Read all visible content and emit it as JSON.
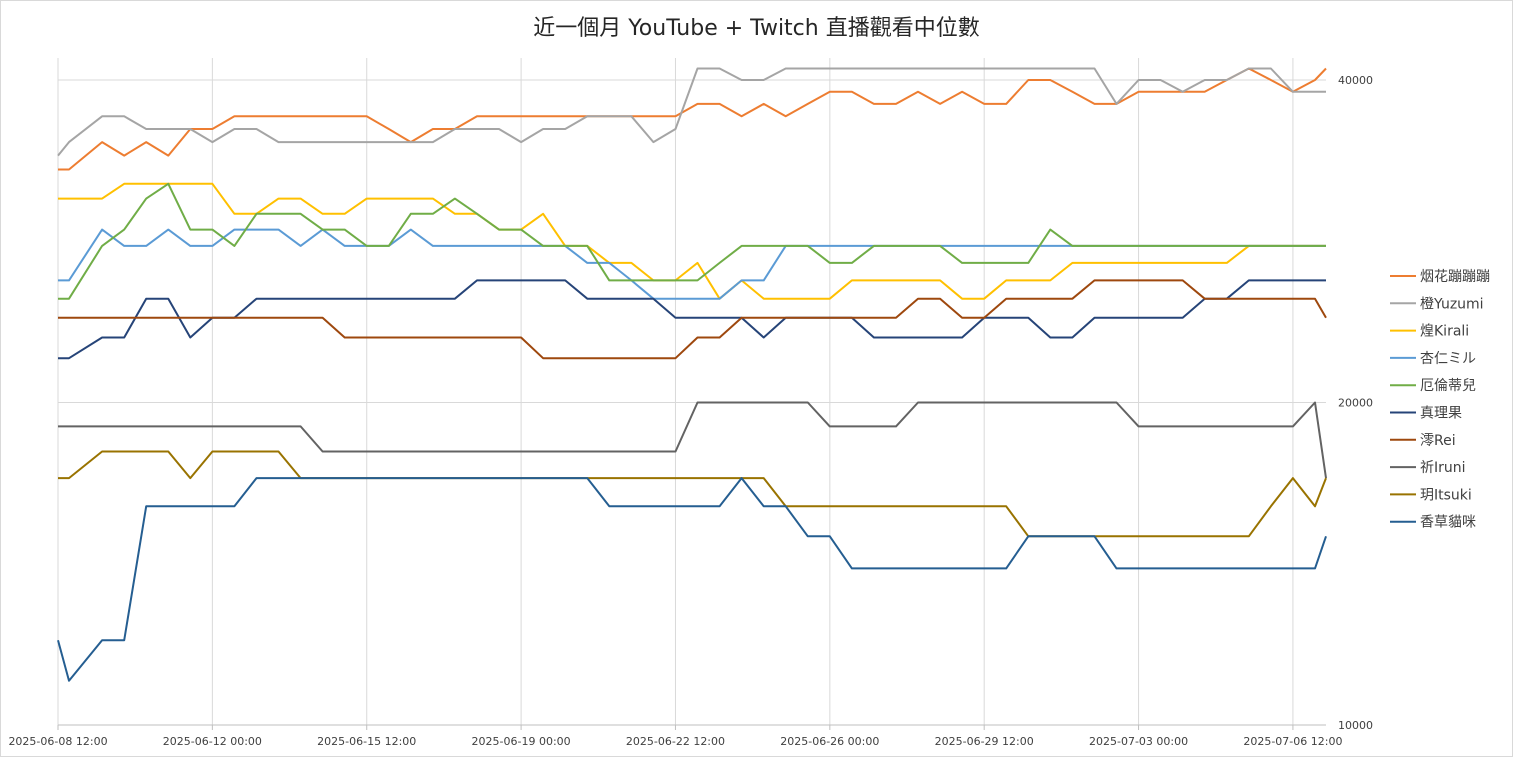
{
  "chart_data": {
    "type": "line",
    "title": "近一個月 YouTube + Twitch 直播觀看中位數",
    "xlabel": "",
    "ylabel": "",
    "y_scale": "log",
    "ylim": [
      10000,
      40000
    ],
    "y_ticks": [
      10000,
      20000,
      40000
    ],
    "y_tick_labels": [
      "10000",
      "20000",
      "40000"
    ],
    "y_axis_side": "right",
    "grid": true,
    "legend_position": "right",
    "x_range": [
      "2025-06-08 12:00",
      "2025-07-07 06:00"
    ],
    "x_ticks": [
      "2025-06-08 12:00",
      "2025-06-12 00:00",
      "2025-06-15 12:00",
      "2025-06-19 00:00",
      "2025-06-22 12:00",
      "2025-06-26 00:00",
      "2025-06-29 12:00",
      "2025-07-03 00:00",
      "2025-07-06 12:00"
    ],
    "x": [
      "2025-06-08 12:00",
      "2025-06-08 18:00",
      "2025-06-09 12:00",
      "2025-06-10 00:00",
      "2025-06-10 12:00",
      "2025-06-11 00:00",
      "2025-06-11 12:00",
      "2025-06-12 00:00",
      "2025-06-12 12:00",
      "2025-06-13 00:00",
      "2025-06-13 12:00",
      "2025-06-14 00:00",
      "2025-06-14 12:00",
      "2025-06-15 00:00",
      "2025-06-15 12:00",
      "2025-06-16 00:00",
      "2025-06-16 12:00",
      "2025-06-17 00:00",
      "2025-06-17 12:00",
      "2025-06-18 00:00",
      "2025-06-18 12:00",
      "2025-06-19 00:00",
      "2025-06-19 12:00",
      "2025-06-20 00:00",
      "2025-06-20 12:00",
      "2025-06-21 00:00",
      "2025-06-21 12:00",
      "2025-06-22 00:00",
      "2025-06-22 12:00",
      "2025-06-23 00:00",
      "2025-06-23 12:00",
      "2025-06-24 00:00",
      "2025-06-24 12:00",
      "2025-06-25 00:00",
      "2025-06-25 12:00",
      "2025-06-26 00:00",
      "2025-06-26 12:00",
      "2025-06-27 00:00",
      "2025-06-27 12:00",
      "2025-06-28 00:00",
      "2025-06-28 12:00",
      "2025-06-29 00:00",
      "2025-06-29 12:00",
      "2025-06-30 00:00",
      "2025-06-30 12:00",
      "2025-07-01 00:00",
      "2025-07-01 12:00",
      "2025-07-02 00:00",
      "2025-07-02 12:00",
      "2025-07-03 00:00",
      "2025-07-03 12:00",
      "2025-07-04 00:00",
      "2025-07-04 12:00",
      "2025-07-05 00:00",
      "2025-07-05 12:00",
      "2025-07-06 00:00",
      "2025-07-06 12:00",
      "2025-07-07 00:00",
      "2025-07-07 06:00"
    ],
    "series": [
      {
        "name": "烟花蹦蹦蹦",
        "color": "#ED7D31",
        "values": [
          33000,
          33000,
          35000,
          34000,
          35000,
          34000,
          36000,
          36000,
          37000,
          37000,
          37000,
          37000,
          37000,
          37000,
          37000,
          36000,
          35000,
          36000,
          36000,
          37000,
          37000,
          37000,
          37000,
          37000,
          37000,
          37000,
          37000,
          37000,
          37000,
          38000,
          38000,
          37000,
          38000,
          37000,
          38000,
          39000,
          39000,
          38000,
          38000,
          39000,
          38000,
          39000,
          38000,
          38000,
          40000,
          40000,
          39000,
          38000,
          38000,
          39000,
          39000,
          39000,
          39000,
          40000,
          41000,
          40000,
          39000,
          40000,
          41000
        ]
      },
      {
        "name": "橙Yuzumi",
        "color": "#A5A5A5",
        "values": [
          34000,
          35000,
          37000,
          37000,
          36000,
          36000,
          36000,
          35000,
          36000,
          36000,
          35000,
          35000,
          35000,
          35000,
          35000,
          35000,
          35000,
          35000,
          36000,
          36000,
          36000,
          35000,
          36000,
          36000,
          37000,
          37000,
          37000,
          35000,
          36000,
          41000,
          41000,
          40000,
          40000,
          41000,
          41000,
          41000,
          41000,
          41000,
          41000,
          41000,
          41000,
          41000,
          41000,
          41000,
          41000,
          41000,
          41000,
          41000,
          38000,
          40000,
          40000,
          39000,
          40000,
          40000,
          41000,
          41000,
          39000,
          39000,
          39000
        ]
      },
      {
        "name": "煌Kirali",
        "color": "#FFC000",
        "values": [
          31000,
          31000,
          31000,
          32000,
          32000,
          32000,
          32000,
          32000,
          30000,
          30000,
          31000,
          31000,
          30000,
          30000,
          31000,
          31000,
          31000,
          31000,
          30000,
          30000,
          29000,
          29000,
          30000,
          28000,
          28000,
          27000,
          27000,
          26000,
          26000,
          27000,
          25000,
          26000,
          25000,
          25000,
          25000,
          25000,
          26000,
          26000,
          26000,
          26000,
          26000,
          25000,
          25000,
          26000,
          26000,
          26000,
          27000,
          27000,
          27000,
          27000,
          27000,
          27000,
          27000,
          27000,
          28000,
          28000,
          28000,
          28000,
          28000
        ]
      },
      {
        "name": "杏仁ミル",
        "color": "#5B9BD5",
        "values": [
          26000,
          26000,
          29000,
          28000,
          28000,
          29000,
          28000,
          28000,
          29000,
          29000,
          29000,
          28000,
          29000,
          28000,
          28000,
          28000,
          29000,
          28000,
          28000,
          28000,
          28000,
          28000,
          28000,
          28000,
          27000,
          27000,
          26000,
          25000,
          25000,
          25000,
          25000,
          26000,
          26000,
          28000,
          28000,
          28000,
          28000,
          28000,
          28000,
          28000,
          28000,
          28000,
          28000,
          28000,
          28000,
          28000,
          28000,
          28000,
          28000,
          28000,
          28000,
          28000,
          28000,
          28000,
          28000,
          28000,
          28000,
          28000,
          28000
        ]
      },
      {
        "name": "厄倫蒂兒",
        "color": "#70AD47",
        "values": [
          25000,
          25000,
          28000,
          29000,
          31000,
          32000,
          29000,
          29000,
          28000,
          30000,
          30000,
          30000,
          29000,
          29000,
          28000,
          28000,
          30000,
          30000,
          31000,
          30000,
          29000,
          29000,
          28000,
          28000,
          28000,
          26000,
          26000,
          26000,
          26000,
          26000,
          27000,
          28000,
          28000,
          28000,
          28000,
          27000,
          27000,
          28000,
          28000,
          28000,
          28000,
          27000,
          27000,
          27000,
          27000,
          29000,
          28000,
          28000,
          28000,
          28000,
          28000,
          28000,
          28000,
          28000,
          28000,
          28000,
          28000,
          28000,
          28000
        ]
      },
      {
        "name": "真理果",
        "color": "#264478",
        "values": [
          22000,
          22000,
          23000,
          23000,
          25000,
          25000,
          23000,
          24000,
          24000,
          25000,
          25000,
          25000,
          25000,
          25000,
          25000,
          25000,
          25000,
          25000,
          25000,
          26000,
          26000,
          26000,
          26000,
          26000,
          25000,
          25000,
          25000,
          25000,
          24000,
          24000,
          24000,
          24000,
          23000,
          24000,
          24000,
          24000,
          24000,
          23000,
          23000,
          23000,
          23000,
          23000,
          24000,
          24000,
          24000,
          23000,
          23000,
          24000,
          24000,
          24000,
          24000,
          24000,
          25000,
          25000,
          26000,
          26000,
          26000,
          26000,
          26000
        ]
      },
      {
        "name": "澪Rei",
        "color": "#9E480E",
        "values": [
          24000,
          24000,
          24000,
          24000,
          24000,
          24000,
          24000,
          24000,
          24000,
          24000,
          24000,
          24000,
          24000,
          23000,
          23000,
          23000,
          23000,
          23000,
          23000,
          23000,
          23000,
          23000,
          22000,
          22000,
          22000,
          22000,
          22000,
          22000,
          22000,
          23000,
          23000,
          24000,
          24000,
          24000,
          24000,
          24000,
          24000,
          24000,
          24000,
          25000,
          25000,
          24000,
          24000,
          25000,
          25000,
          25000,
          25000,
          26000,
          26000,
          26000,
          26000,
          26000,
          25000,
          25000,
          25000,
          25000,
          25000,
          25000,
          24000
        ]
      },
      {
        "name": "祈Iruni",
        "color": "#636363",
        "values": [
          19000,
          19000,
          19000,
          19000,
          19000,
          19000,
          19000,
          19000,
          19000,
          19000,
          19000,
          19000,
          18000,
          18000,
          18000,
          18000,
          18000,
          18000,
          18000,
          18000,
          18000,
          18000,
          18000,
          18000,
          18000,
          18000,
          18000,
          18000,
          18000,
          20000,
          20000,
          20000,
          20000,
          20000,
          20000,
          19000,
          19000,
          19000,
          19000,
          20000,
          20000,
          20000,
          20000,
          20000,
          20000,
          20000,
          20000,
          20000,
          20000,
          19000,
          19000,
          19000,
          19000,
          19000,
          19000,
          19000,
          19000,
          20000,
          17000
        ]
      },
      {
        "name": "玥Itsuki",
        "color": "#997300",
        "values": [
          17000,
          17000,
          18000,
          18000,
          18000,
          18000,
          17000,
          18000,
          18000,
          18000,
          18000,
          17000,
          17000,
          17000,
          17000,
          17000,
          17000,
          17000,
          17000,
          17000,
          17000,
          17000,
          17000,
          17000,
          17000,
          17000,
          17000,
          17000,
          17000,
          17000,
          17000,
          17000,
          17000,
          16000,
          16000,
          16000,
          16000,
          16000,
          16000,
          16000,
          16000,
          16000,
          16000,
          16000,
          15000,
          15000,
          15000,
          15000,
          15000,
          15000,
          15000,
          15000,
          15000,
          15000,
          15000,
          16000,
          17000,
          16000,
          17000
        ]
      },
      {
        "name": "香草貓咪",
        "color": "#255E91",
        "values": [
          12000,
          11000,
          12000,
          12000,
          16000,
          16000,
          16000,
          16000,
          16000,
          17000,
          17000,
          17000,
          17000,
          17000,
          17000,
          17000,
          17000,
          17000,
          17000,
          17000,
          17000,
          17000,
          17000,
          17000,
          17000,
          16000,
          16000,
          16000,
          16000,
          16000,
          16000,
          17000,
          16000,
          16000,
          15000,
          15000,
          14000,
          14000,
          14000,
          14000,
          14000,
          14000,
          14000,
          14000,
          15000,
          15000,
          15000,
          15000,
          14000,
          14000,
          14000,
          14000,
          14000,
          14000,
          14000,
          14000,
          14000,
          14000,
          15000
        ]
      }
    ]
  }
}
